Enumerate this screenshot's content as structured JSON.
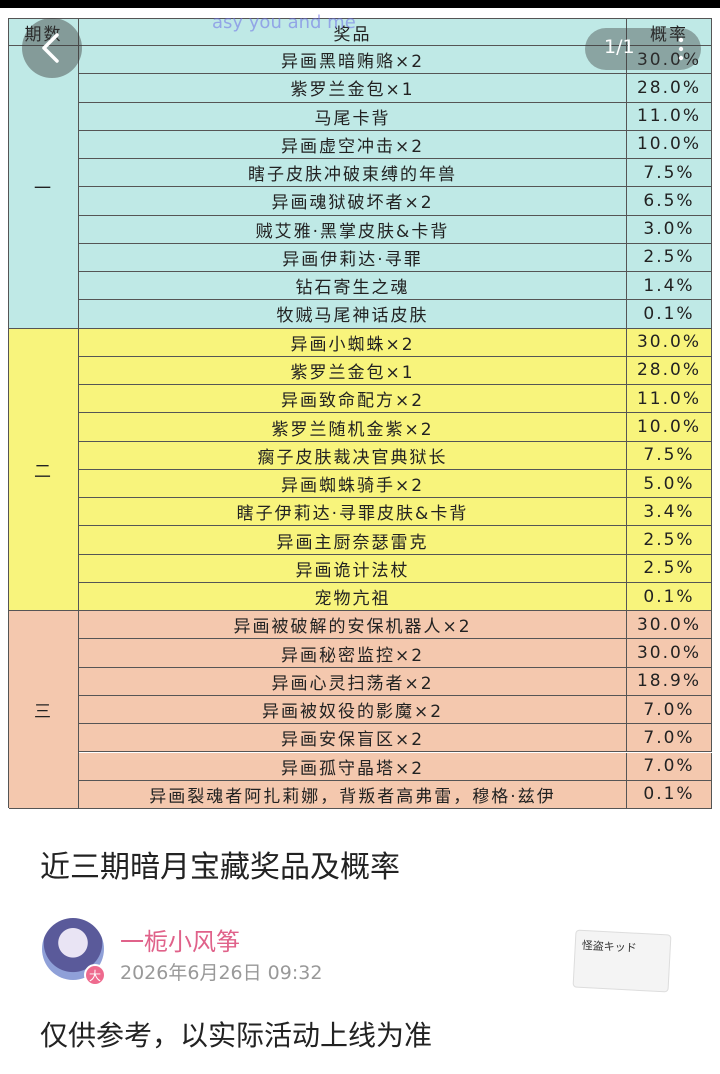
{
  "overlay": {
    "watermark": "asy you and me",
    "counter": "1/1"
  },
  "table": {
    "header": {
      "period": "期数",
      "prize": "奖品",
      "rate": "概率"
    },
    "groups": [
      {
        "label": "一",
        "color": "#bfe9e6",
        "rows": [
          {
            "prize": "异画黑暗贿赂×2",
            "rate": "30.0%"
          },
          {
            "prize": "紫罗兰金包×1",
            "rate": "28.0%"
          },
          {
            "prize": "马尾卡背",
            "rate": "11.0%"
          },
          {
            "prize": "异画虚空冲击×2",
            "rate": "10.0%"
          },
          {
            "prize": "瞎子皮肤冲破束缚的年兽",
            "rate": "7.5%"
          },
          {
            "prize": "异画魂狱破坏者×2",
            "rate": "6.5%"
          },
          {
            "prize": "贼艾雅·黑掌皮肤&卡背",
            "rate": "3.0%"
          },
          {
            "prize": "异画伊莉达·寻罪",
            "rate": "2.5%"
          },
          {
            "prize": "钻石寄生之魂",
            "rate": "1.4%"
          },
          {
            "prize": "牧贼马尾神话皮肤",
            "rate": "0.1%"
          }
        ]
      },
      {
        "label": "二",
        "color": "#f8f47c",
        "rows": [
          {
            "prize": "异画小蜘蛛×2",
            "rate": "30.0%"
          },
          {
            "prize": "紫罗兰金包×1",
            "rate": "28.0%"
          },
          {
            "prize": "异画致命配方×2",
            "rate": "11.0%"
          },
          {
            "prize": "紫罗兰随机金紫×2",
            "rate": "10.0%"
          },
          {
            "prize": "瘸子皮肤裁决官典狱长",
            "rate": "7.5%"
          },
          {
            "prize": "异画蜘蛛骑手×2",
            "rate": "5.0%"
          },
          {
            "prize": "瞎子伊莉达·寻罪皮肤&卡背",
            "rate": "3.4%"
          },
          {
            "prize": "异画主厨奈瑟雷克",
            "rate": "2.5%"
          },
          {
            "prize": "异画诡计法杖",
            "rate": "2.5%"
          },
          {
            "prize": "宠物亢祖",
            "rate": "0.1%"
          }
        ]
      },
      {
        "label": "三",
        "color": "#f4c8ae",
        "rows": [
          {
            "prize": "异画被破解的安保机器人×2",
            "rate": "30.0%"
          },
          {
            "prize": "异画秘密监控×2",
            "rate": "30.0%"
          },
          {
            "prize": "异画心灵扫荡者×2",
            "rate": "18.9%"
          },
          {
            "prize": "异画被奴役的影魔×2",
            "rate": "7.0%"
          },
          {
            "prize": "异画安保盲区×2",
            "rate": "7.0%"
          },
          {
            "prize": "异画孤守晶塔×2",
            "rate": "7.0%"
          },
          {
            "prize": "异画裂魂者阿扎莉娜，背叛者高弗雷，穆格·兹伊",
            "rate": "0.1%"
          }
        ]
      }
    ]
  },
  "post": {
    "title": "近三期暗月宝藏奖品及概率",
    "author": "一栀小风筝",
    "badge": "大",
    "time": "2026年6月26日 09:32",
    "sticker": "怪盗キッド",
    "body": "仅供参考，以实际活动上线为准"
  }
}
